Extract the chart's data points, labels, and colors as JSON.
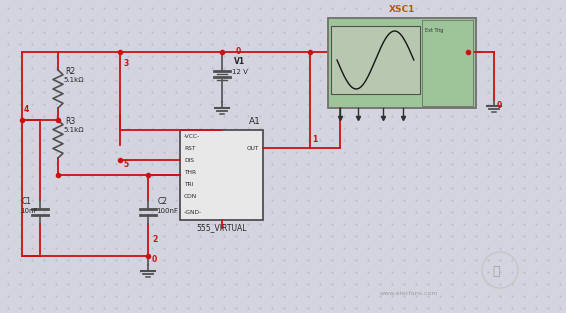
{
  "bg_color": "#d4d4e0",
  "dot_color": "#b8b8cc",
  "wire_color": "#cc1111",
  "chip_border": "#505050",
  "chip_fill": "#e8e8e8",
  "scope_fill": "#9ec49a",
  "scope_screen_fill": "#b0c0a8",
  "text_color_dark": "#282828",
  "label_color": "#b06000",
  "watermark": "www.elecfans.com",
  "chip_pins_left": [
    "-VCC-",
    "RST",
    "DIS",
    "THR",
    "TRI",
    "CON",
    "-GND-"
  ],
  "chip_pins_right": [
    "OUT"
  ],
  "R2_label": "R2\n5.1kΩ",
  "R3_label": "R3\n5.1kΩ",
  "C1_label": "C1\n10nF",
  "C2_label": "C2\n100nF",
  "V1_label": "V1\n12 V",
  "chip_label": "A1",
  "chip_sublabel": "555_VIRTUAL",
  "scope_label": "XSC1"
}
